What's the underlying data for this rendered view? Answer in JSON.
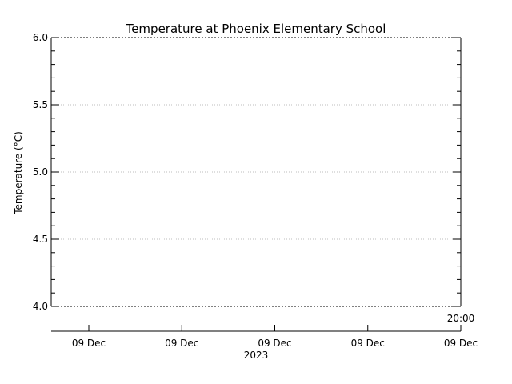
{
  "chart_data": {
    "type": "line",
    "title": "Temperature at Phoenix Elementary School",
    "xlabel": "",
    "ylabel": "Temperature (°C)",
    "ylim": [
      4.0,
      6.0
    ],
    "y_ticks": [
      "4.0",
      "4.5",
      "5.0",
      "5.5",
      "6.0"
    ],
    "x_ticks": [
      "09 Dec",
      "09 Dec",
      "09 Dec",
      "09 Dec",
      "09 Dec"
    ],
    "x_time_label": "20:00",
    "x_year_label": "2023",
    "grid": true,
    "series": []
  }
}
